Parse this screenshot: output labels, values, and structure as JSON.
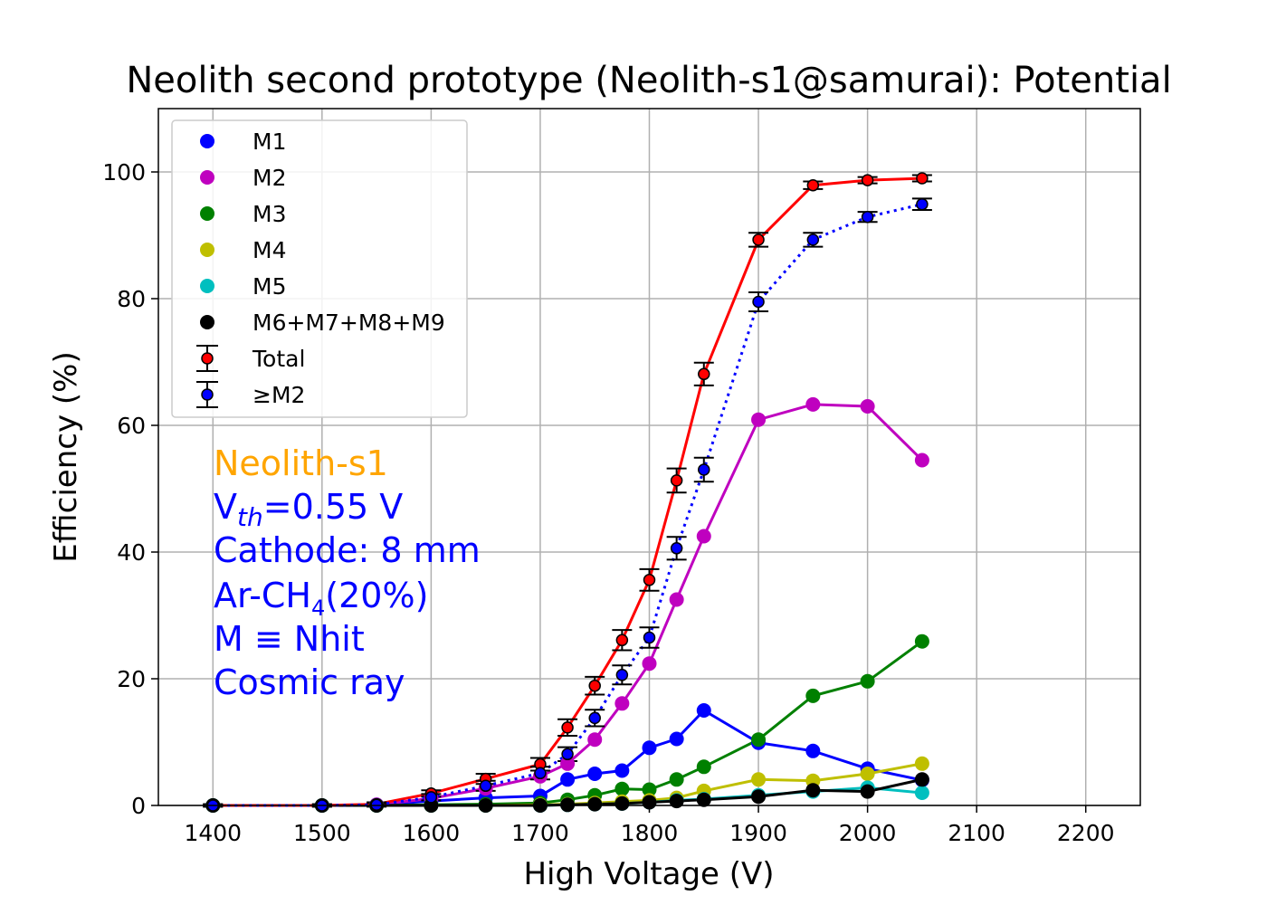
{
  "chart_data": {
    "type": "line",
    "title": "Neolith second prototype (Neolith-s1@samurai): Potential",
    "xlabel": "High Voltage (V)",
    "ylabel": "Efficiency (%)",
    "xlim": [
      1350,
      2250
    ],
    "ylim": [
      0,
      110
    ],
    "xticks": [
      1400,
      1500,
      1600,
      1700,
      1800,
      1900,
      2000,
      2100,
      2200
    ],
    "yticks": [
      0,
      20,
      40,
      60,
      80,
      100
    ],
    "grid": true,
    "legend_position": "top-left",
    "x": [
      1400,
      1500,
      1550,
      1600,
      1650,
      1700,
      1725,
      1750,
      1775,
      1800,
      1825,
      1850,
      1900,
      1950,
      2000,
      2050
    ],
    "series": [
      {
        "name": "M1",
        "color": "#0000ff",
        "style": "solid",
        "values": [
          0,
          0,
          0.1,
          0.7,
          1.2,
          1.5,
          4.1,
          5.0,
          5.5,
          9.1,
          10.5,
          15.0,
          9.9,
          8.6,
          5.8,
          4.0
        ]
      },
      {
        "name": "M2",
        "color": "#bf00bf",
        "style": "solid",
        "values": [
          0,
          0,
          0.1,
          1.1,
          2.7,
          4.6,
          6.6,
          10.4,
          16.1,
          22.4,
          32.5,
          42.5,
          60.9,
          63.3,
          63.0,
          54.5
        ]
      },
      {
        "name": "M3",
        "color": "#008000",
        "style": "solid",
        "values": [
          0,
          0,
          0,
          0.1,
          0.2,
          0.4,
          0.9,
          1.6,
          2.6,
          2.5,
          4.1,
          6.1,
          10.4,
          17.3,
          19.6,
          25.9
        ]
      },
      {
        "name": "M4",
        "color": "#bfbf00",
        "style": "solid",
        "values": [
          0,
          0,
          0,
          0,
          0,
          0.1,
          0.2,
          0.4,
          0.6,
          0.8,
          1.2,
          2.3,
          4.1,
          3.9,
          5.0,
          6.6
        ]
      },
      {
        "name": "M5",
        "color": "#00bfbf",
        "style": "solid",
        "values": [
          0,
          0,
          0,
          0,
          0,
          0,
          0.1,
          0.2,
          0.3,
          0.5,
          0.8,
          1.0,
          1.6,
          2.2,
          2.8,
          2.0
        ]
      },
      {
        "name": "M6+M7+M8+M9",
        "color": "#000000",
        "style": "solid",
        "values": [
          0,
          0,
          0,
          0,
          0,
          0,
          0.1,
          0.2,
          0.3,
          0.5,
          0.7,
          0.9,
          1.4,
          2.4,
          2.2,
          4.1
        ]
      },
      {
        "name": "Total",
        "color": "#ff0000",
        "marker_fill": "#ff0000",
        "style": "solid",
        "errorbars": true,
        "values": [
          0,
          0,
          0.2,
          1.9,
          4.2,
          6.5,
          12.3,
          18.9,
          26.1,
          35.6,
          51.3,
          68.1,
          89.3,
          97.9,
          98.7,
          99.0
        ],
        "errors": [
          0.2,
          0.2,
          0.3,
          0.5,
          0.8,
          1.0,
          1.3,
          1.4,
          1.6,
          1.7,
          1.9,
          1.8,
          1.1,
          0.6,
          0.5,
          0.5
        ]
      },
      {
        "name": "≥M2",
        "color": "#0000ff",
        "marker_fill": "#0000ff",
        "style": "dotted",
        "errorbars": true,
        "values": [
          0,
          0,
          0.1,
          1.3,
          3.1,
          5.1,
          8.1,
          13.8,
          20.6,
          26.5,
          40.6,
          53.0,
          79.5,
          89.3,
          92.9,
          94.9
        ],
        "errors": [
          0.2,
          0.2,
          0.3,
          0.5,
          0.8,
          1.0,
          1.1,
          1.3,
          1.5,
          1.6,
          1.8,
          1.9,
          1.5,
          1.1,
          0.8,
          0.9
        ]
      }
    ],
    "annotation": {
      "line1": "Neolith-s1",
      "line2_prefix": "V",
      "line2_sub": "th",
      "line2_suffix": "=0.55 V",
      "line3": "Cathode: 8 mm",
      "line4_prefix": "Ar-CH",
      "line4_sub": "4",
      "line4_suffix": "(20%)",
      "line5": "M ≡ Nhit",
      "line6": "Cosmic ray",
      "color_line1": "#ffa500",
      "color_rest": "#0000ff"
    }
  }
}
